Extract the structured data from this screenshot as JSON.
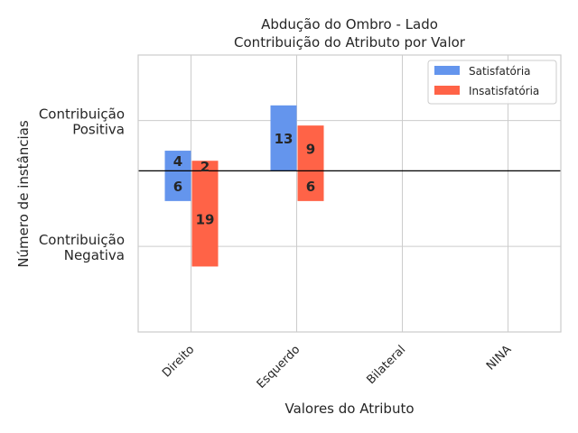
{
  "chart_data": {
    "type": "bar",
    "title": "Abdução do Ombro - Lado",
    "subtitle": "Contribuição do Atributo por Valor",
    "xlabel": "Valores do Atributo",
    "ylabel": "Número de instâncias",
    "y_tick_labels": [
      {
        "line1": "Contribuição",
        "line2": "Positiva",
        "value": 10
      },
      {
        "line1": "Contribuição",
        "line2": "Negativa",
        "value": -15
      }
    ],
    "categories": [
      "Direito",
      "Esquerdo",
      "Bilateral",
      "NINA"
    ],
    "ylim": [
      -32,
      23
    ],
    "grid": true,
    "legend_position": "top-right",
    "series": [
      {
        "name": "Satisfatória",
        "color": "#6495ED",
        "positive": [
          4,
          13,
          0,
          0
        ],
        "negative": [
          6,
          0,
          0,
          0
        ]
      },
      {
        "name": "Insatisfatória",
        "color": "#FF6347",
        "positive": [
          2,
          9,
          0,
          0
        ],
        "negative": [
          19,
          6,
          0,
          0
        ]
      }
    ]
  }
}
